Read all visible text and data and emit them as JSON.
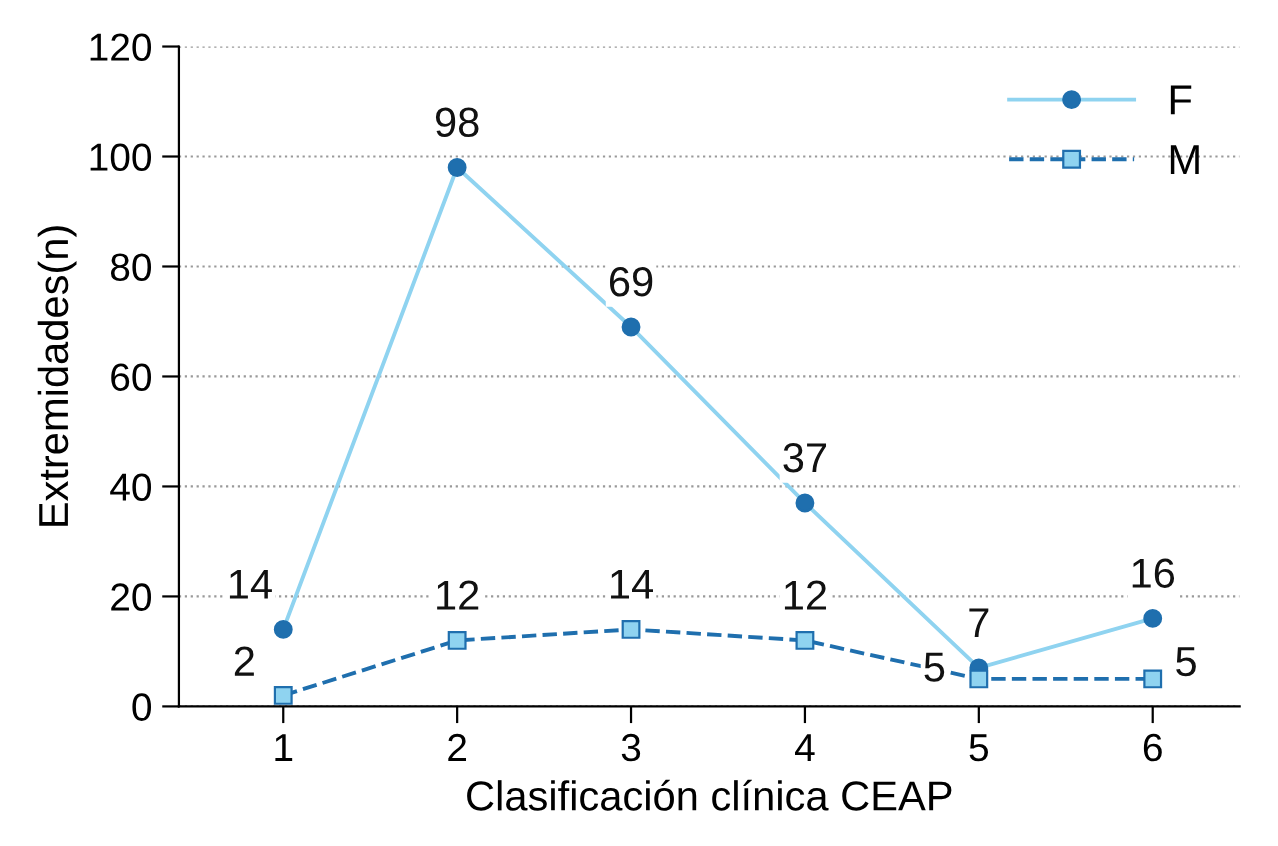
{
  "chart_data": {
    "type": "line",
    "xlabel": "Clasificación clínica CEAP",
    "ylabel": "Extremidades(n)",
    "categories": [
      "1",
      "2",
      "3",
      "4",
      "5",
      "6"
    ],
    "series": [
      {
        "name": "F",
        "color": "#8fd3f0",
        "marker": "circle",
        "line_style": "solid",
        "values": [
          14,
          98,
          69,
          37,
          7,
          16
        ]
      },
      {
        "name": "M",
        "color": "#1f6fae",
        "marker": "square",
        "line_style": "dashed",
        "values": [
          2,
          12,
          14,
          12,
          5,
          5
        ]
      }
    ],
    "ylim": [
      0,
      120
    ],
    "yticks": [
      0,
      20,
      40,
      60,
      80,
      100,
      120
    ],
    "grid": "y",
    "legend": "top right",
    "data_labels": true
  }
}
